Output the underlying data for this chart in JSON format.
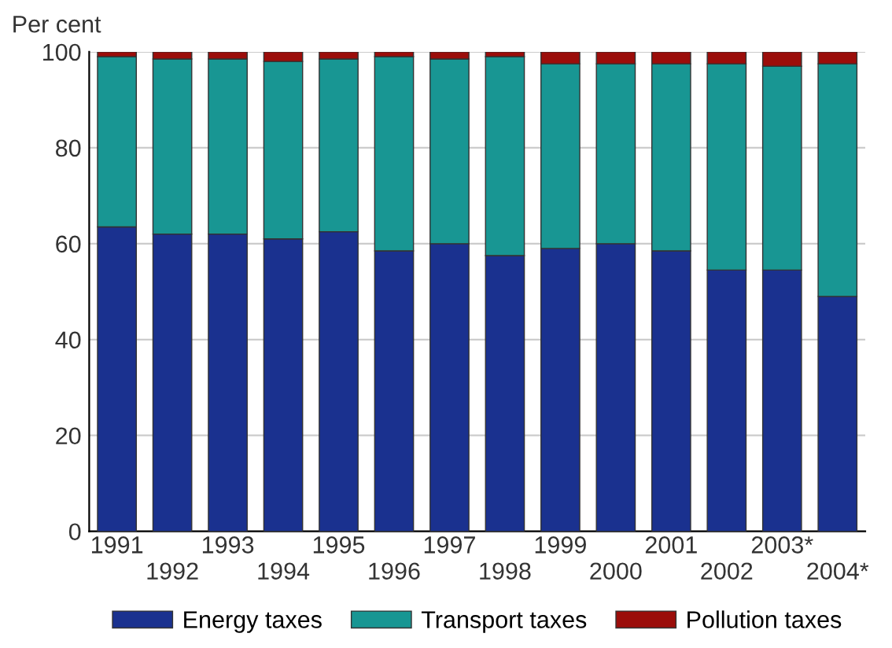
{
  "chart_data": {
    "type": "bar",
    "stacked": true,
    "ylabel": "Per cent",
    "categories": [
      "1991",
      "1992",
      "1993",
      "1994",
      "1995",
      "1996",
      "1997",
      "1998",
      "1999",
      "2000",
      "2001",
      "2002",
      "2003*",
      "2004*"
    ],
    "series": [
      {
        "name": "Energy taxes",
        "color": "#1a318f",
        "values": [
          63.5,
          62,
          62,
          61,
          62.5,
          58.5,
          60,
          57.5,
          59,
          60,
          58.5,
          54.5,
          54.5,
          49
        ]
      },
      {
        "name": "Transport taxes",
        "color": "#189693",
        "values": [
          35.5,
          36.5,
          36.5,
          37,
          36,
          40.5,
          38.5,
          41.5,
          38.5,
          37.5,
          39,
          43,
          42.5,
          48.5
        ]
      },
      {
        "name": "Pollution taxes",
        "color": "#9b0d0a",
        "values": [
          1,
          1.5,
          1.5,
          2,
          1.5,
          1,
          1.5,
          1,
          2.5,
          2.5,
          2.5,
          2.5,
          3,
          2.5
        ]
      }
    ],
    "ylim": [
      0,
      100
    ],
    "yticks": [
      0,
      20,
      40,
      60,
      80,
      100
    ],
    "grid": "y",
    "legend": "bottom"
  }
}
